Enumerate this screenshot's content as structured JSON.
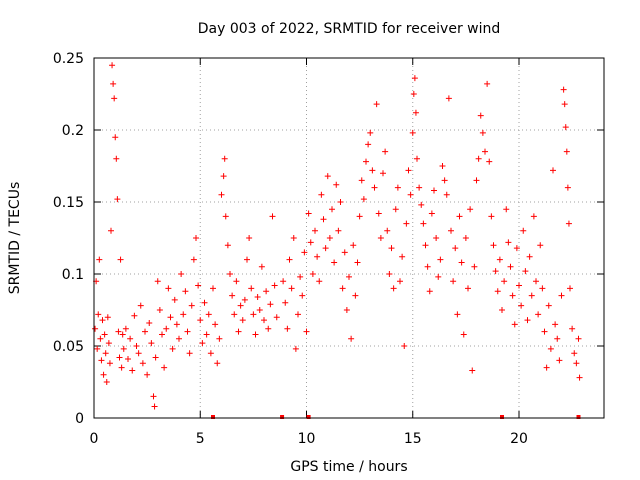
{
  "chart_data": {
    "type": "scatter",
    "title": "Day 003 of 2022, SRMTID for receiver wind",
    "xlabel": "GPS time / hours",
    "ylabel": "SRMTID / TECUs",
    "xlim": [
      0,
      24
    ],
    "ylim": [
      0,
      0.25
    ],
    "x_ticks": [
      0,
      5,
      10,
      15,
      20
    ],
    "x_tick_labels": [
      "0",
      "5",
      "10",
      "15",
      "20"
    ],
    "y_ticks": [
      0,
      0.05,
      0.1,
      0.15,
      0.2,
      0.25
    ],
    "y_tick_labels": [
      "0",
      "0.05",
      "0.1",
      "0.15",
      "0.2",
      "0.25"
    ],
    "grid": true,
    "marker": "+",
    "marker_color": "#ff0000",
    "series": [
      {
        "name": "SRMTID",
        "points": [
          [
            0.05,
            0.062
          ],
          [
            0.1,
            0.095
          ],
          [
            0.15,
            0.048
          ],
          [
            0.2,
            0.072
          ],
          [
            0.25,
            0.11
          ],
          [
            0.3,
            0.055
          ],
          [
            0.35,
            0.04
          ],
          [
            0.4,
            0.068
          ],
          [
            0.45,
            0.03
          ],
          [
            0.5,
            0.058
          ],
          [
            0.55,
            0.045
          ],
          [
            0.6,
            0.025
          ],
          [
            0.65,
            0.07
          ],
          [
            0.7,
            0.052
          ],
          [
            0.75,
            0.038
          ],
          [
            0.8,
            0.13
          ],
          [
            0.85,
            0.245
          ],
          [
            0.9,
            0.232
          ],
          [
            0.95,
            0.222
          ],
          [
            1.0,
            0.195
          ],
          [
            1.05,
            0.18
          ],
          [
            1.1,
            0.152
          ],
          [
            1.15,
            0.06
          ],
          [
            1.2,
            0.042
          ],
          [
            1.25,
            0.11
          ],
          [
            1.3,
            0.035
          ],
          [
            1.35,
            0.058
          ],
          [
            1.4,
            0.048
          ],
          [
            1.5,
            0.062
          ],
          [
            1.6,
            0.041
          ],
          [
            1.7,
            0.055
          ],
          [
            1.8,
            0.033
          ],
          [
            1.9,
            0.071
          ],
          [
            2.0,
            0.05
          ],
          [
            2.1,
            0.045
          ],
          [
            2.2,
            0.078
          ],
          [
            2.3,
            0.038
          ],
          [
            2.4,
            0.06
          ],
          [
            2.5,
            0.03
          ],
          [
            2.6,
            0.066
          ],
          [
            2.7,
            0.052
          ],
          [
            2.8,
            0.015
          ],
          [
            2.85,
            0.008
          ],
          [
            2.9,
            0.042
          ],
          [
            3.0,
            0.095
          ],
          [
            3.1,
            0.075
          ],
          [
            3.2,
            0.058
          ],
          [
            3.3,
            0.035
          ],
          [
            3.4,
            0.062
          ],
          [
            3.5,
            0.09
          ],
          [
            3.6,
            0.07
          ],
          [
            3.7,
            0.048
          ],
          [
            3.8,
            0.082
          ],
          [
            3.9,
            0.065
          ],
          [
            4.0,
            0.055
          ],
          [
            4.1,
            0.1
          ],
          [
            4.2,
            0.072
          ],
          [
            4.3,
            0.088
          ],
          [
            4.4,
            0.06
          ],
          [
            4.5,
            0.045
          ],
          [
            4.6,
            0.078
          ],
          [
            4.7,
            0.11
          ],
          [
            4.8,
            0.125
          ],
          [
            4.9,
            0.092
          ],
          [
            5.0,
            0.068
          ],
          [
            5.1,
            0.052
          ],
          [
            5.2,
            0.08
          ],
          [
            5.3,
            0.058
          ],
          [
            5.4,
            0.072
          ],
          [
            5.5,
            0.045
          ],
          [
            5.6,
            0.09
          ],
          [
            5.7,
            0.065
          ],
          [
            5.8,
            0.038
          ],
          [
            5.9,
            0.055
          ],
          [
            6.0,
            0.155
          ],
          [
            6.1,
            0.168
          ],
          [
            6.15,
            0.18
          ],
          [
            6.2,
            0.14
          ],
          [
            6.3,
            0.12
          ],
          [
            6.4,
            0.1
          ],
          [
            6.5,
            0.085
          ],
          [
            6.6,
            0.072
          ],
          [
            6.7,
            0.095
          ],
          [
            6.8,
            0.06
          ],
          [
            6.9,
            0.078
          ],
          [
            7.0,
            0.068
          ],
          [
            7.1,
            0.082
          ],
          [
            7.2,
            0.11
          ],
          [
            7.3,
            0.125
          ],
          [
            7.4,
            0.09
          ],
          [
            7.5,
            0.072
          ],
          [
            7.6,
            0.058
          ],
          [
            7.7,
            0.084
          ],
          [
            7.8,
            0.075
          ],
          [
            7.9,
            0.105
          ],
          [
            8.0,
            0.068
          ],
          [
            8.1,
            0.088
          ],
          [
            8.2,
            0.062
          ],
          [
            8.3,
            0.079
          ],
          [
            8.4,
            0.14
          ],
          [
            8.5,
            0.092
          ],
          [
            8.6,
            0.07
          ],
          [
            8.9,
            0.095
          ],
          [
            9.0,
            0.08
          ],
          [
            9.1,
            0.062
          ],
          [
            9.2,
            0.11
          ],
          [
            9.3,
            0.09
          ],
          [
            9.4,
            0.125
          ],
          [
            9.5,
            0.048
          ],
          [
            9.6,
            0.072
          ],
          [
            9.7,
            0.098
          ],
          [
            9.8,
            0.085
          ],
          [
            9.9,
            0.115
          ],
          [
            10.0,
            0.06
          ],
          [
            10.1,
            0.142
          ],
          [
            10.2,
            0.122
          ],
          [
            10.3,
            0.1
          ],
          [
            10.4,
            0.13
          ],
          [
            10.5,
            0.112
          ],
          [
            10.6,
            0.095
          ],
          [
            10.7,
            0.155
          ],
          [
            10.8,
            0.138
          ],
          [
            10.9,
            0.118
          ],
          [
            11.0,
            0.168
          ],
          [
            11.1,
            0.125
          ],
          [
            11.2,
            0.145
          ],
          [
            11.3,
            0.108
          ],
          [
            11.4,
            0.162
          ],
          [
            11.5,
            0.13
          ],
          [
            11.6,
            0.15
          ],
          [
            11.7,
            0.09
          ],
          [
            11.8,
            0.115
          ],
          [
            11.9,
            0.075
          ],
          [
            12.0,
            0.098
          ],
          [
            12.1,
            0.055
          ],
          [
            12.2,
            0.12
          ],
          [
            12.3,
            0.085
          ],
          [
            12.4,
            0.108
          ],
          [
            12.5,
            0.14
          ],
          [
            12.6,
            0.165
          ],
          [
            12.7,
            0.152
          ],
          [
            12.8,
            0.178
          ],
          [
            12.9,
            0.19
          ],
          [
            13.0,
            0.198
          ],
          [
            13.1,
            0.172
          ],
          [
            13.2,
            0.16
          ],
          [
            13.3,
            0.218
          ],
          [
            13.4,
            0.142
          ],
          [
            13.5,
            0.125
          ],
          [
            13.6,
            0.17
          ],
          [
            13.7,
            0.185
          ],
          [
            13.8,
            0.13
          ],
          [
            13.9,
            0.1
          ],
          [
            14.0,
            0.118
          ],
          [
            14.1,
            0.09
          ],
          [
            14.2,
            0.145
          ],
          [
            14.3,
            0.16
          ],
          [
            14.4,
            0.095
          ],
          [
            14.5,
            0.112
          ],
          [
            14.6,
            0.05
          ],
          [
            14.7,
            0.135
          ],
          [
            14.8,
            0.172
          ],
          [
            14.9,
            0.155
          ],
          [
            15.0,
            0.198
          ],
          [
            15.05,
            0.225
          ],
          [
            15.1,
            0.236
          ],
          [
            15.15,
            0.212
          ],
          [
            15.2,
            0.18
          ],
          [
            15.3,
            0.16
          ],
          [
            15.4,
            0.148
          ],
          [
            15.5,
            0.135
          ],
          [
            15.6,
            0.12
          ],
          [
            15.7,
            0.105
          ],
          [
            15.8,
            0.088
          ],
          [
            15.9,
            0.142
          ],
          [
            16.0,
            0.158
          ],
          [
            16.1,
            0.125
          ],
          [
            16.2,
            0.098
          ],
          [
            16.3,
            0.11
          ],
          [
            16.4,
            0.175
          ],
          [
            16.5,
            0.165
          ],
          [
            16.6,
            0.155
          ],
          [
            16.7,
            0.222
          ],
          [
            16.8,
            0.13
          ],
          [
            16.9,
            0.095
          ],
          [
            17.0,
            0.118
          ],
          [
            17.1,
            0.072
          ],
          [
            17.2,
            0.14
          ],
          [
            17.3,
            0.108
          ],
          [
            17.4,
            0.058
          ],
          [
            17.5,
            0.125
          ],
          [
            17.6,
            0.09
          ],
          [
            17.7,
            0.145
          ],
          [
            17.8,
            0.033
          ],
          [
            17.9,
            0.105
          ],
          [
            18.0,
            0.165
          ],
          [
            18.1,
            0.18
          ],
          [
            18.2,
            0.21
          ],
          [
            18.3,
            0.198
          ],
          [
            18.4,
            0.185
          ],
          [
            18.5,
            0.232
          ],
          [
            18.6,
            0.178
          ],
          [
            18.7,
            0.14
          ],
          [
            18.8,
            0.12
          ],
          [
            18.9,
            0.102
          ],
          [
            19.0,
            0.088
          ],
          [
            19.1,
            0.11
          ],
          [
            19.2,
            0.075
          ],
          [
            19.3,
            0.095
          ],
          [
            19.4,
            0.145
          ],
          [
            19.5,
            0.122
          ],
          [
            19.6,
            0.105
          ],
          [
            19.7,
            0.085
          ],
          [
            19.8,
            0.065
          ],
          [
            19.9,
            0.118
          ],
          [
            20.0,
            0.092
          ],
          [
            20.1,
            0.078
          ],
          [
            20.2,
            0.13
          ],
          [
            20.3,
            0.102
          ],
          [
            20.4,
            0.068
          ],
          [
            20.5,
            0.112
          ],
          [
            20.6,
            0.085
          ],
          [
            20.7,
            0.14
          ],
          [
            20.8,
            0.095
          ],
          [
            20.9,
            0.072
          ],
          [
            21.0,
            0.12
          ],
          [
            21.1,
            0.09
          ],
          [
            21.2,
            0.06
          ],
          [
            21.3,
            0.035
          ],
          [
            21.4,
            0.078
          ],
          [
            21.5,
            0.048
          ],
          [
            21.6,
            0.172
          ],
          [
            21.7,
            0.065
          ],
          [
            21.8,
            0.055
          ],
          [
            21.9,
            0.04
          ],
          [
            22.0,
            0.085
          ],
          [
            22.1,
            0.228
          ],
          [
            22.15,
            0.218
          ],
          [
            22.2,
            0.202
          ],
          [
            22.25,
            0.185
          ],
          [
            22.3,
            0.16
          ],
          [
            22.35,
            0.135
          ],
          [
            22.4,
            0.09
          ],
          [
            22.5,
            0.062
          ],
          [
            22.6,
            0.045
          ],
          [
            22.7,
            0.038
          ],
          [
            22.8,
            0.055
          ],
          [
            22.85,
            0.028
          ]
        ]
      }
    ],
    "missing_data_marks_x": [
      5.6,
      8.85,
      10.1,
      19.2,
      22.8
    ]
  }
}
